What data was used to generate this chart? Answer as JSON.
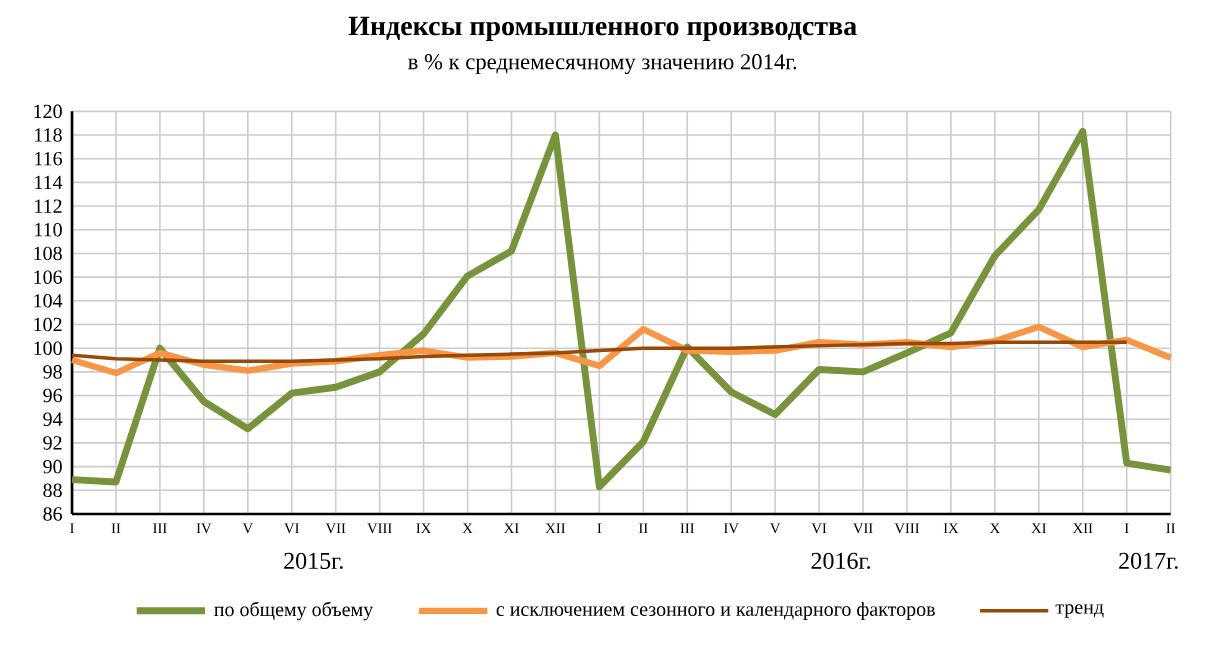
{
  "chart_data": {
    "type": "line",
    "title": "Индексы промышленного производства",
    "subtitle": "в % к среднемесячному значению 2014г.",
    "categories": [
      "I",
      "II",
      "III",
      "IV",
      "V",
      "VI",
      "VII",
      "VIII",
      "IX",
      "X",
      "XI",
      "XII",
      "I",
      "II",
      "III",
      "IV",
      "V",
      "VI",
      "VII",
      "VIII",
      "IX",
      "X",
      "XI",
      "XII",
      "I",
      "II"
    ],
    "series": [
      {
        "name": "по общему объему",
        "color": "#77933c",
        "values": [
          88.9,
          88.7,
          100.0,
          95.5,
          93.2,
          96.2,
          96.7,
          98.0,
          101.2,
          106.1,
          108.2,
          118.0,
          88.3,
          92.1,
          100.1,
          96.3,
          94.4,
          98.2,
          98.0,
          99.6,
          101.3,
          107.8,
          111.7,
          118.3,
          90.3,
          89.7
        ]
      },
      {
        "name": "с исключением сезонного и календарного факторов",
        "color": "#f79646",
        "values": [
          99.0,
          97.9,
          99.6,
          98.6,
          98.1,
          98.7,
          98.9,
          99.4,
          99.8,
          99.2,
          99.3,
          99.6,
          98.5,
          101.6,
          99.8,
          99.7,
          99.8,
          100.5,
          100.3,
          100.5,
          100.1,
          100.6,
          101.8,
          100.1,
          100.7,
          99.2
        ]
      },
      {
        "name": "тренд",
        "color": "#984807",
        "values": [
          99.4,
          99.1,
          99.0,
          98.9,
          98.9,
          98.9,
          99.0,
          99.1,
          99.3,
          99.4,
          99.5,
          99.6,
          99.8,
          100.0,
          100.0,
          100.0,
          100.1,
          100.2,
          100.3,
          100.4,
          100.4,
          100.5,
          100.5,
          100.5,
          100.5,
          null
        ]
      }
    ],
    "annotations": [
      "2015г.",
      "2016г.",
      "2017г."
    ],
    "ylim": [
      86,
      120
    ],
    "yticks": [
      86,
      88,
      90,
      92,
      94,
      96,
      98,
      100,
      102,
      104,
      106,
      108,
      110,
      112,
      114,
      116,
      118,
      120
    ],
    "grid": true,
    "legend": "bottom",
    "marker": "none",
    "line_style": "solid"
  }
}
